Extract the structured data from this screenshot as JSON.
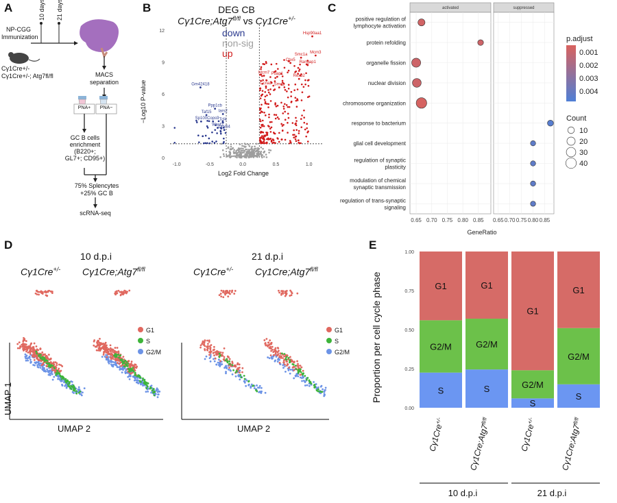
{
  "panel_labels": {
    "a": "A",
    "b": "B",
    "c": "C",
    "d": "D",
    "e": "E"
  },
  "panel_a": {
    "immunization": "NP-CGG\nImmunization",
    "day10": "10 days",
    "day21": "21 days",
    "mice": "Cγ1Cre+/-\nCγ1Cre+/-; Atg7fl/fl",
    "macs": "MACS\nseparation",
    "pna_pos": "PNA+",
    "pna_neg": "PNA−",
    "enrichment": "GC B cells\nenrichment\n(B220+;\nGL7+; CD95+)",
    "mix": "75% Splencytes\n+25% GC B",
    "seq": "scRNA-seq"
  },
  "panel_b": {
    "title_line1": "DEG CB",
    "title_a": "Cγ1Cre;Atg7",
    "title_a_sup": "fl/fl",
    "title_vs": " vs ",
    "title_b": "Cγ1Cre",
    "title_b_sup": "+/-",
    "legend_down": "down",
    "legend_nonsig": "non-sig",
    "legend_up": "up",
    "ylabel": "−Log10 P-value",
    "xlabel": "Log2 Fold Change",
    "colors": {
      "down": "#2b3a8f",
      "nonsig": "#9e9e9e",
      "up": "#d11a1a"
    },
    "chart_data": {
      "type": "scatter",
      "title": "DEG CB",
      "xlabel": "Log2 Fold Change",
      "ylabel": "−Log10 P-value",
      "xlim": [
        -1.1,
        1.2
      ],
      "ylim": [
        0,
        12.5
      ],
      "xticks": [
        "-1.0",
        "-0.5",
        "0.0",
        "0.5",
        "1.0"
      ],
      "yticks": [
        "0",
        "3",
        "6",
        "9",
        "12"
      ],
      "thresholds": {
        "fc": 0.25,
        "p": 1.3
      },
      "labeled_genes": [
        {
          "gene": "Hsp90aa1",
          "x": 1.05,
          "y": 11.4,
          "group": "up"
        },
        {
          "gene": "Mcm3",
          "x": 1.1,
          "y": 9.6,
          "group": "up"
        },
        {
          "gene": "Smc1a",
          "x": 0.88,
          "y": 9.4,
          "group": "up"
        },
        {
          "gene": "Cbx5",
          "x": 0.72,
          "y": 8.9,
          "group": "up"
        },
        {
          "gene": "Rangap1",
          "x": 0.98,
          "y": 8.7,
          "group": "up"
        },
        {
          "gene": "Mcm7",
          "x": 0.32,
          "y": 7.7,
          "group": "up"
        },
        {
          "gene": "Pdap1",
          "x": 0.52,
          "y": 7.6,
          "group": "up"
        },
        {
          "gene": "Rexo2",
          "x": 0.85,
          "y": 7.4,
          "group": "up"
        },
        {
          "gene": "Ccna2",
          "x": 0.35,
          "y": 6.7,
          "group": "up"
        },
        {
          "gene": "Smc2",
          "x": 0.55,
          "y": 6.6,
          "group": "up"
        },
        {
          "gene": "Gm42418",
          "x": -0.64,
          "y": 6.6,
          "group": "down"
        },
        {
          "gene": "Ppp1cb",
          "x": -0.42,
          "y": 4.6,
          "group": "down"
        },
        {
          "gene": "Iars2",
          "x": -0.3,
          "y": 4.1,
          "group": "down"
        },
        {
          "gene": "Taf15",
          "x": -0.55,
          "y": 4.0,
          "group": "down"
        },
        {
          "gene": "Sp100",
          "x": -0.63,
          "y": 3.4,
          "group": "down"
        },
        {
          "gene": "Cops9",
          "x": -0.45,
          "y": 3.4,
          "group": "down"
        },
        {
          "gene": "Tcf4",
          "x": -0.3,
          "y": 3.3,
          "group": "down"
        },
        {
          "gene": "Wasf2",
          "x": -0.38,
          "y": 2.8,
          "group": "down"
        },
        {
          "gene": "Ddx54",
          "x": -0.28,
          "y": 2.6,
          "group": "down"
        }
      ]
    }
  },
  "panel_c": {
    "facet_activated": "activated",
    "facet_suppressed": "suppressed",
    "xlabel": "GeneRatio",
    "legend_padj_title": "p.adjust",
    "legend_padj_ticks": [
      "0.001",
      "0.002",
      "0.003",
      "0.004"
    ],
    "legend_count_title": "Count",
    "legend_count_values": [
      "10",
      "20",
      "30",
      "40"
    ],
    "colors": {
      "high": "#d9625e",
      "low": "#4f7fd6"
    },
    "chart_data": {
      "type": "scatter",
      "xlabel": "GeneRatio",
      "xlim": [
        0.63,
        0.89
      ],
      "xticks": [
        "0.65",
        "0.70",
        "0.75",
        "0.80",
        "0.85"
      ],
      "terms": [
        "positive regulation of\nlymphocyte activation",
        "protein refolding",
        "organelle fission",
        "nuclear division",
        "chromosome organization",
        "response to bacterium",
        "glial cell development",
        "regulation of synaptic\nplasticity",
        "modulation of chemical\nsynaptic transmission",
        "regulation of trans-synaptic\nsignaling"
      ],
      "points": [
        {
          "term": 0,
          "facet": "activated",
          "gene_ratio": 0.667,
          "count": 12,
          "p_adjust": 0.0012
        },
        {
          "term": 1,
          "facet": "activated",
          "gene_ratio": 0.857,
          "count": 6,
          "p_adjust": 0.0013
        },
        {
          "term": 2,
          "facet": "activated",
          "gene_ratio": 0.65,
          "count": 26,
          "p_adjust": 0.0013
        },
        {
          "term": 3,
          "facet": "activated",
          "gene_ratio": 0.652,
          "count": 24,
          "p_adjust": 0.0013
        },
        {
          "term": 4,
          "facet": "activated",
          "gene_ratio": 0.667,
          "count": 40,
          "p_adjust": 0.0011
        },
        {
          "term": 5,
          "facet": "suppressed",
          "gene_ratio": 0.875,
          "count": 7,
          "p_adjust": 0.0043
        },
        {
          "term": 6,
          "facet": "suppressed",
          "gene_ratio": 0.8,
          "count": 4,
          "p_adjust": 0.0041
        },
        {
          "term": 7,
          "facet": "suppressed",
          "gene_ratio": 0.8,
          "count": 4,
          "p_adjust": 0.0041
        },
        {
          "term": 8,
          "facet": "suppressed",
          "gene_ratio": 0.8,
          "count": 4,
          "p_adjust": 0.0041
        },
        {
          "term": 9,
          "facet": "suppressed",
          "gene_ratio": 0.8,
          "count": 4,
          "p_adjust": 0.0041
        }
      ]
    }
  },
  "panel_d": {
    "title_10": "10 d.p.i",
    "title_21": "21 d.p.i",
    "geno_het": "Cγ1Cre",
    "geno_het_sup": "+/-",
    "geno_ko": "Cγ1Cre;Atg7",
    "geno_ko_sup": "fl/fl",
    "legend": [
      "G1",
      "S",
      "G2/M"
    ],
    "axis_y": "UMAP 1",
    "axis_x": "UMAP 2",
    "colors": {
      "G1": "#e0685f",
      "S": "#3db43a",
      "G2M": "#6c93e6"
    }
  },
  "panel_e": {
    "ylabel": "Proportion per cell cycle phase",
    "group_10": "10 d.p.i",
    "group_21": "21 d.p.i",
    "colors": {
      "G1": "#d66b67",
      "G2M": "#6cc14a",
      "S": "#6b96f2"
    },
    "chart_data": {
      "type": "bar",
      "stacked": true,
      "categories": [
        "Cγ1Cre+/-",
        "Cγ1Cre;Atg7fl/fl",
        "Cγ1Cre+/-",
        "Cγ1Cre;Atg7fl/fl"
      ],
      "category_base": [
        "Cγ1Cre",
        "Cγ1Cre;Atg7",
        "Cγ1Cre",
        "Cγ1Cre;Atg7"
      ],
      "category_sup": [
        "+/-",
        "fl/fl",
        "+/-",
        "fl/fl"
      ],
      "groups": [
        "10 d.p.i",
        "10 d.p.i",
        "21 d.p.i",
        "21 d.p.i"
      ],
      "series": [
        {
          "name": "S",
          "values": [
            0.225,
            0.245,
            0.06,
            0.15
          ]
        },
        {
          "name": "G2/M",
          "values": [
            0.335,
            0.325,
            0.18,
            0.36
          ]
        },
        {
          "name": "G1",
          "values": [
            0.44,
            0.43,
            0.76,
            0.49
          ]
        }
      ],
      "ylabel": "Proportion per cell cycle phase",
      "ylim": [
        0,
        1
      ],
      "yticks": [
        "0.00",
        "0.25",
        "0.50",
        "0.75",
        "1.00"
      ]
    }
  }
}
